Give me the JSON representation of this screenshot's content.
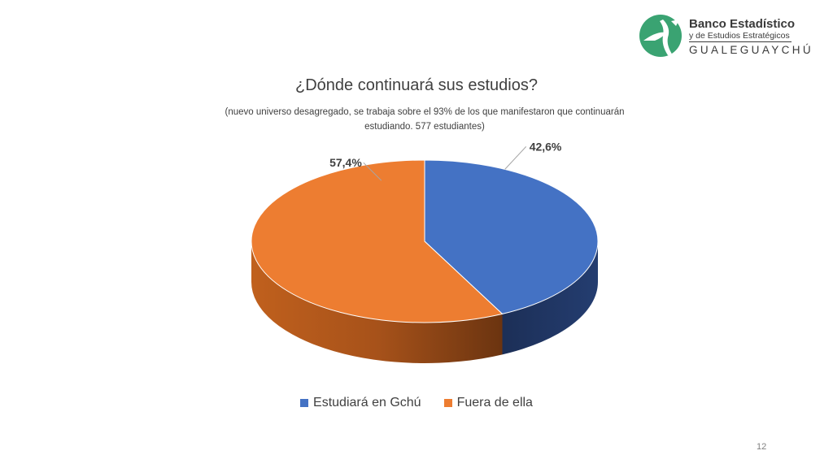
{
  "logo": {
    "title": "Banco Estadístico",
    "subtitle": "y de Estudios Estratégicos",
    "city": "GUALEGUAYCHÚ",
    "brand_color": "#3aa372"
  },
  "chart_data": {
    "type": "pie",
    "style": "3d",
    "title": "¿Dónde continuará sus estudios?",
    "subtitle": "(nuevo universo desagregado, se trabaja sobre el 93% de los que manifestaron que continuarán estudiando. 577 estudiantes)",
    "categories": [
      "Estudiará en Gchú",
      "Fuera de ella"
    ],
    "values": [
      42.6,
      57.4
    ],
    "data_labels": [
      "42,6%",
      "57,4%"
    ],
    "colors": [
      "#4472c4",
      "#ed7d31"
    ],
    "legend_position": "bottom"
  },
  "page_number": "12"
}
